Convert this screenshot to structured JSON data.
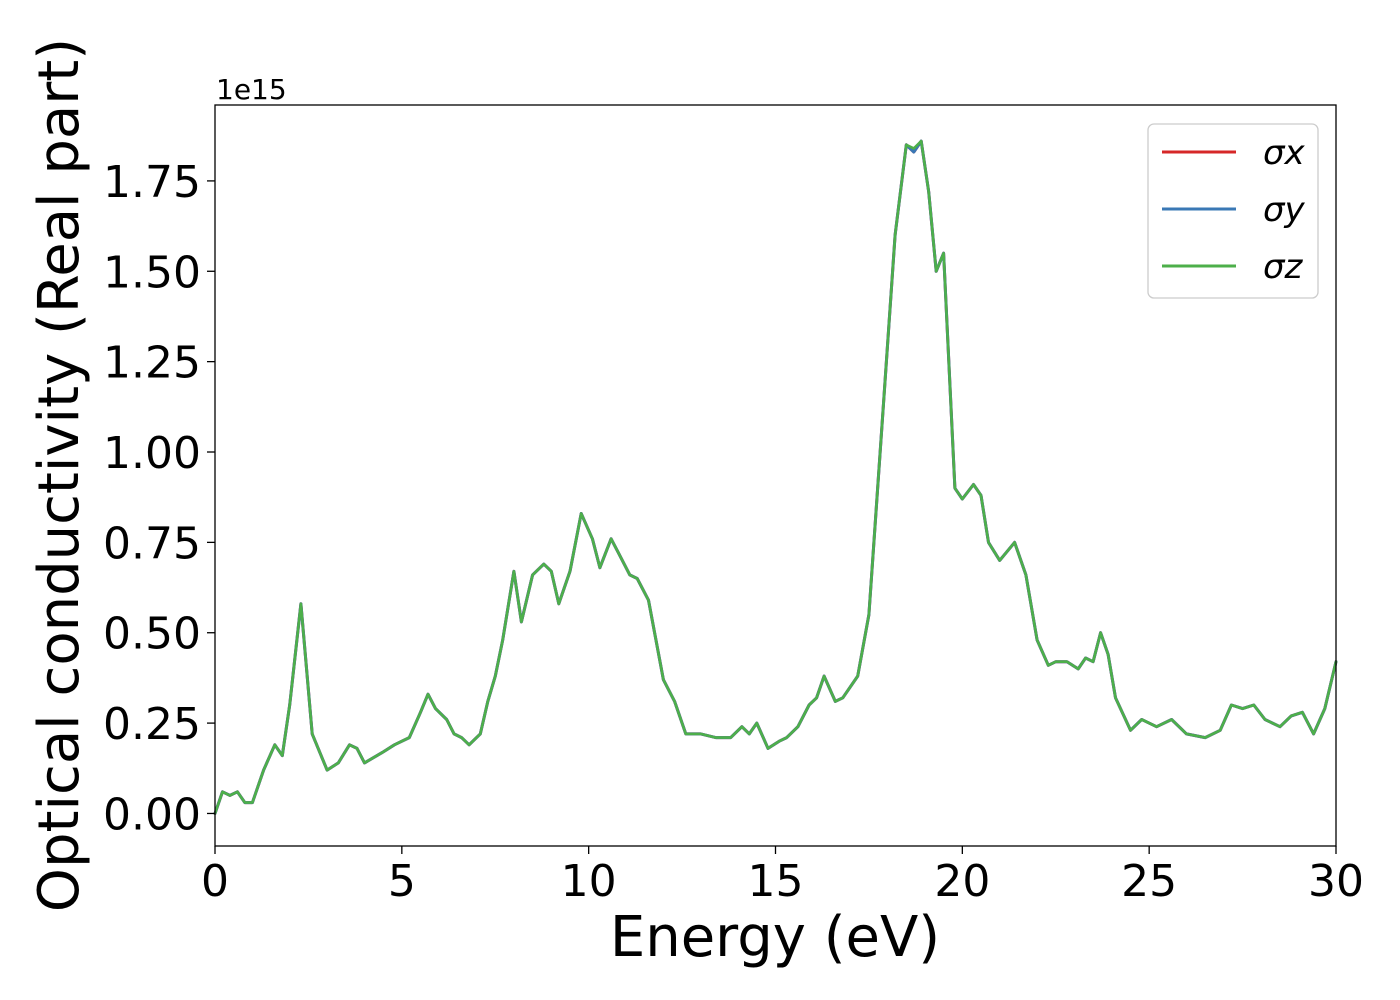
{
  "chart_data": {
    "type": "line",
    "xlabel": "Energy (eV)",
    "ylabel": "Optical conductivity (Real part)",
    "y_offset_label": "1e15",
    "xlim": [
      0,
      30
    ],
    "ylim": [
      -0.09,
      1.96
    ],
    "x_ticks": [
      0,
      5,
      10,
      15,
      20,
      25,
      30
    ],
    "x_tick_labels": [
      "0",
      "5",
      "10",
      "15",
      "20",
      "25",
      "30"
    ],
    "y_ticks": [
      0.0,
      0.25,
      0.5,
      0.75,
      1.0,
      1.25,
      1.5,
      1.75
    ],
    "y_tick_labels": [
      "0.00",
      "0.25",
      "0.50",
      "0.75",
      "1.00",
      "1.25",
      "1.50",
      "1.75"
    ],
    "grid": false,
    "legend_position": "top-right",
    "x": [
      0.0,
      0.2,
      0.4,
      0.6,
      0.8,
      1.0,
      1.3,
      1.6,
      1.8,
      2.0,
      2.3,
      2.6,
      3.0,
      3.3,
      3.6,
      3.8,
      4.0,
      4.5,
      4.8,
      5.2,
      5.5,
      5.7,
      5.9,
      6.2,
      6.4,
      6.6,
      6.8,
      7.1,
      7.3,
      7.5,
      7.7,
      8.0,
      8.2,
      8.5,
      8.8,
      9.0,
      9.2,
      9.5,
      9.8,
      10.1,
      10.3,
      10.6,
      10.8,
      11.1,
      11.3,
      11.6,
      12.0,
      12.3,
      12.6,
      13.0,
      13.4,
      13.8,
      14.1,
      14.3,
      14.5,
      14.8,
      15.1,
      15.3,
      15.6,
      15.9,
      16.1,
      16.3,
      16.6,
      16.8,
      17.2,
      17.5,
      17.9,
      18.2,
      18.5,
      18.7,
      18.9,
      19.1,
      19.3,
      19.5,
      19.8,
      20.0,
      20.3,
      20.5,
      20.7,
      21.0,
      21.4,
      21.7,
      22.0,
      22.3,
      22.5,
      22.8,
      23.1,
      23.3,
      23.5,
      23.7,
      23.9,
      24.1,
      24.5,
      24.8,
      25.2,
      25.6,
      26.0,
      26.5,
      26.9,
      27.2,
      27.5,
      27.8,
      28.1,
      28.5,
      28.8,
      29.1,
      29.4,
      29.7,
      30.0
    ],
    "series": [
      {
        "name": "σx",
        "color": "#d62728",
        "values": [
          0.0,
          0.06,
          0.05,
          0.06,
          0.03,
          0.03,
          0.12,
          0.19,
          0.16,
          0.3,
          0.58,
          0.22,
          0.12,
          0.14,
          0.19,
          0.18,
          0.14,
          0.17,
          0.19,
          0.21,
          0.28,
          0.33,
          0.29,
          0.26,
          0.22,
          0.21,
          0.19,
          0.22,
          0.31,
          0.38,
          0.48,
          0.67,
          0.53,
          0.66,
          0.69,
          0.67,
          0.58,
          0.67,
          0.83,
          0.76,
          0.68,
          0.76,
          0.72,
          0.66,
          0.65,
          0.59,
          0.37,
          0.31,
          0.22,
          0.22,
          0.21,
          0.21,
          0.24,
          0.22,
          0.25,
          0.18,
          0.2,
          0.21,
          0.24,
          0.3,
          0.32,
          0.38,
          0.31,
          0.32,
          0.38,
          0.55,
          1.15,
          1.6,
          1.85,
          1.83,
          1.86,
          1.72,
          1.5,
          1.55,
          0.9,
          0.87,
          0.91,
          0.88,
          0.75,
          0.7,
          0.75,
          0.66,
          0.48,
          0.41,
          0.42,
          0.42,
          0.4,
          0.43,
          0.42,
          0.5,
          0.44,
          0.32,
          0.23,
          0.26,
          0.24,
          0.26,
          0.22,
          0.21,
          0.23,
          0.3,
          0.29,
          0.3,
          0.26,
          0.24,
          0.27,
          0.28,
          0.22,
          0.29,
          0.42
        ]
      },
      {
        "name": "σy",
        "color": "#3a78b5",
        "values": [
          0.0,
          0.06,
          0.05,
          0.06,
          0.03,
          0.03,
          0.12,
          0.19,
          0.16,
          0.3,
          0.58,
          0.22,
          0.12,
          0.14,
          0.19,
          0.18,
          0.14,
          0.17,
          0.19,
          0.21,
          0.28,
          0.33,
          0.29,
          0.26,
          0.22,
          0.21,
          0.19,
          0.22,
          0.31,
          0.38,
          0.48,
          0.67,
          0.53,
          0.66,
          0.69,
          0.67,
          0.58,
          0.67,
          0.83,
          0.76,
          0.68,
          0.76,
          0.72,
          0.66,
          0.65,
          0.59,
          0.37,
          0.31,
          0.22,
          0.22,
          0.21,
          0.21,
          0.24,
          0.22,
          0.25,
          0.18,
          0.2,
          0.21,
          0.24,
          0.3,
          0.32,
          0.38,
          0.31,
          0.32,
          0.38,
          0.55,
          1.15,
          1.6,
          1.85,
          1.83,
          1.86,
          1.72,
          1.5,
          1.55,
          0.9,
          0.87,
          0.91,
          0.88,
          0.75,
          0.7,
          0.75,
          0.66,
          0.48,
          0.41,
          0.42,
          0.42,
          0.4,
          0.43,
          0.42,
          0.5,
          0.44,
          0.32,
          0.23,
          0.26,
          0.24,
          0.26,
          0.22,
          0.21,
          0.23,
          0.3,
          0.29,
          0.3,
          0.26,
          0.24,
          0.27,
          0.28,
          0.22,
          0.29,
          0.42
        ]
      },
      {
        "name": "σz",
        "color": "#4daf4a",
        "values": [
          0.0,
          0.06,
          0.05,
          0.06,
          0.03,
          0.03,
          0.12,
          0.19,
          0.16,
          0.3,
          0.58,
          0.22,
          0.12,
          0.14,
          0.19,
          0.18,
          0.14,
          0.17,
          0.19,
          0.21,
          0.28,
          0.33,
          0.29,
          0.26,
          0.22,
          0.21,
          0.19,
          0.22,
          0.31,
          0.38,
          0.48,
          0.67,
          0.53,
          0.66,
          0.69,
          0.67,
          0.58,
          0.67,
          0.83,
          0.76,
          0.68,
          0.76,
          0.72,
          0.66,
          0.65,
          0.59,
          0.37,
          0.31,
          0.22,
          0.22,
          0.21,
          0.21,
          0.24,
          0.22,
          0.25,
          0.18,
          0.2,
          0.21,
          0.24,
          0.3,
          0.32,
          0.38,
          0.31,
          0.32,
          0.38,
          0.55,
          1.15,
          1.6,
          1.85,
          1.84,
          1.86,
          1.72,
          1.5,
          1.55,
          0.9,
          0.87,
          0.91,
          0.88,
          0.75,
          0.7,
          0.75,
          0.66,
          0.48,
          0.41,
          0.42,
          0.42,
          0.4,
          0.43,
          0.42,
          0.5,
          0.44,
          0.32,
          0.23,
          0.26,
          0.24,
          0.26,
          0.22,
          0.21,
          0.23,
          0.3,
          0.29,
          0.3,
          0.26,
          0.24,
          0.27,
          0.28,
          0.22,
          0.29,
          0.42
        ]
      }
    ]
  }
}
